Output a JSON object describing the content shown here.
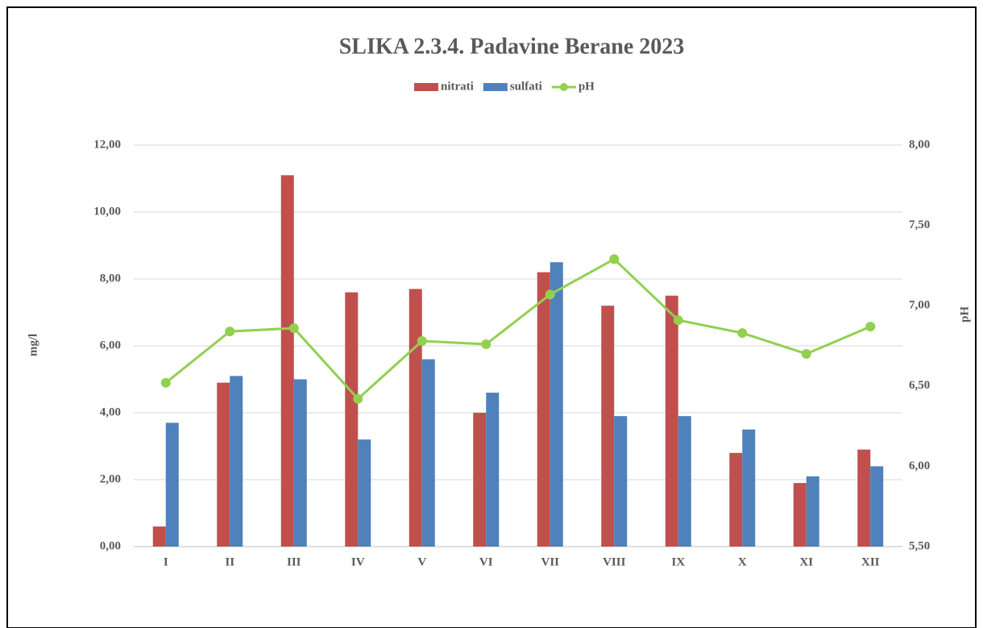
{
  "chart_data": {
    "type": "bar_line",
    "title": "SLIKA 2.3.4. Padavine Berane 2023",
    "y_label": "mg/l",
    "y2_label": "pH",
    "categories": [
      "I",
      "II",
      "III",
      "IV",
      "V",
      "VI",
      "VII",
      "VIII",
      "IX",
      "X",
      "XI",
      "XII"
    ],
    "series": [
      {
        "name": "nitrati",
        "type": "bar",
        "color": "#c0504d",
        "values": [
          0.6,
          4.9,
          11.1,
          7.6,
          7.7,
          4.0,
          8.2,
          7.2,
          7.5,
          2.8,
          1.9,
          2.9
        ]
      },
      {
        "name": "sulfati",
        "type": "bar",
        "color": "#4f81bd",
        "values": [
          3.7,
          5.1,
          5.0,
          3.2,
          5.6,
          4.6,
          8.5,
          3.9,
          3.9,
          3.5,
          2.1,
          2.4
        ]
      },
      {
        "name": "pH",
        "type": "line",
        "axis": "y2",
        "color": "#92d050",
        "values": [
          6.52,
          6.84,
          6.86,
          6.42,
          6.78,
          6.76,
          7.07,
          7.29,
          6.91,
          6.83,
          6.7,
          6.87
        ]
      }
    ],
    "ylim": [
      0,
      12
    ],
    "yticks": [
      {
        "value": 0,
        "label": "0,00"
      },
      {
        "value": 2,
        "label": "2,00"
      },
      {
        "value": 4,
        "label": "4,00"
      },
      {
        "value": 6,
        "label": "6,00"
      },
      {
        "value": 8,
        "label": "8,00"
      },
      {
        "value": 10,
        "label": "10,00"
      },
      {
        "value": 12,
        "label": "12,00"
      }
    ],
    "y2lim": [
      5.5,
      8
    ],
    "y2ticks": [
      {
        "value": 5.5,
        "label": "5,50"
      },
      {
        "value": 6,
        "label": "6,00"
      },
      {
        "value": 6.5,
        "label": "6,50"
      },
      {
        "value": 7,
        "label": "7,00"
      },
      {
        "value": 7.5,
        "label": "7,50"
      },
      {
        "value": 8,
        "label": "8,00"
      }
    ],
    "grid": true,
    "legend": "top"
  }
}
